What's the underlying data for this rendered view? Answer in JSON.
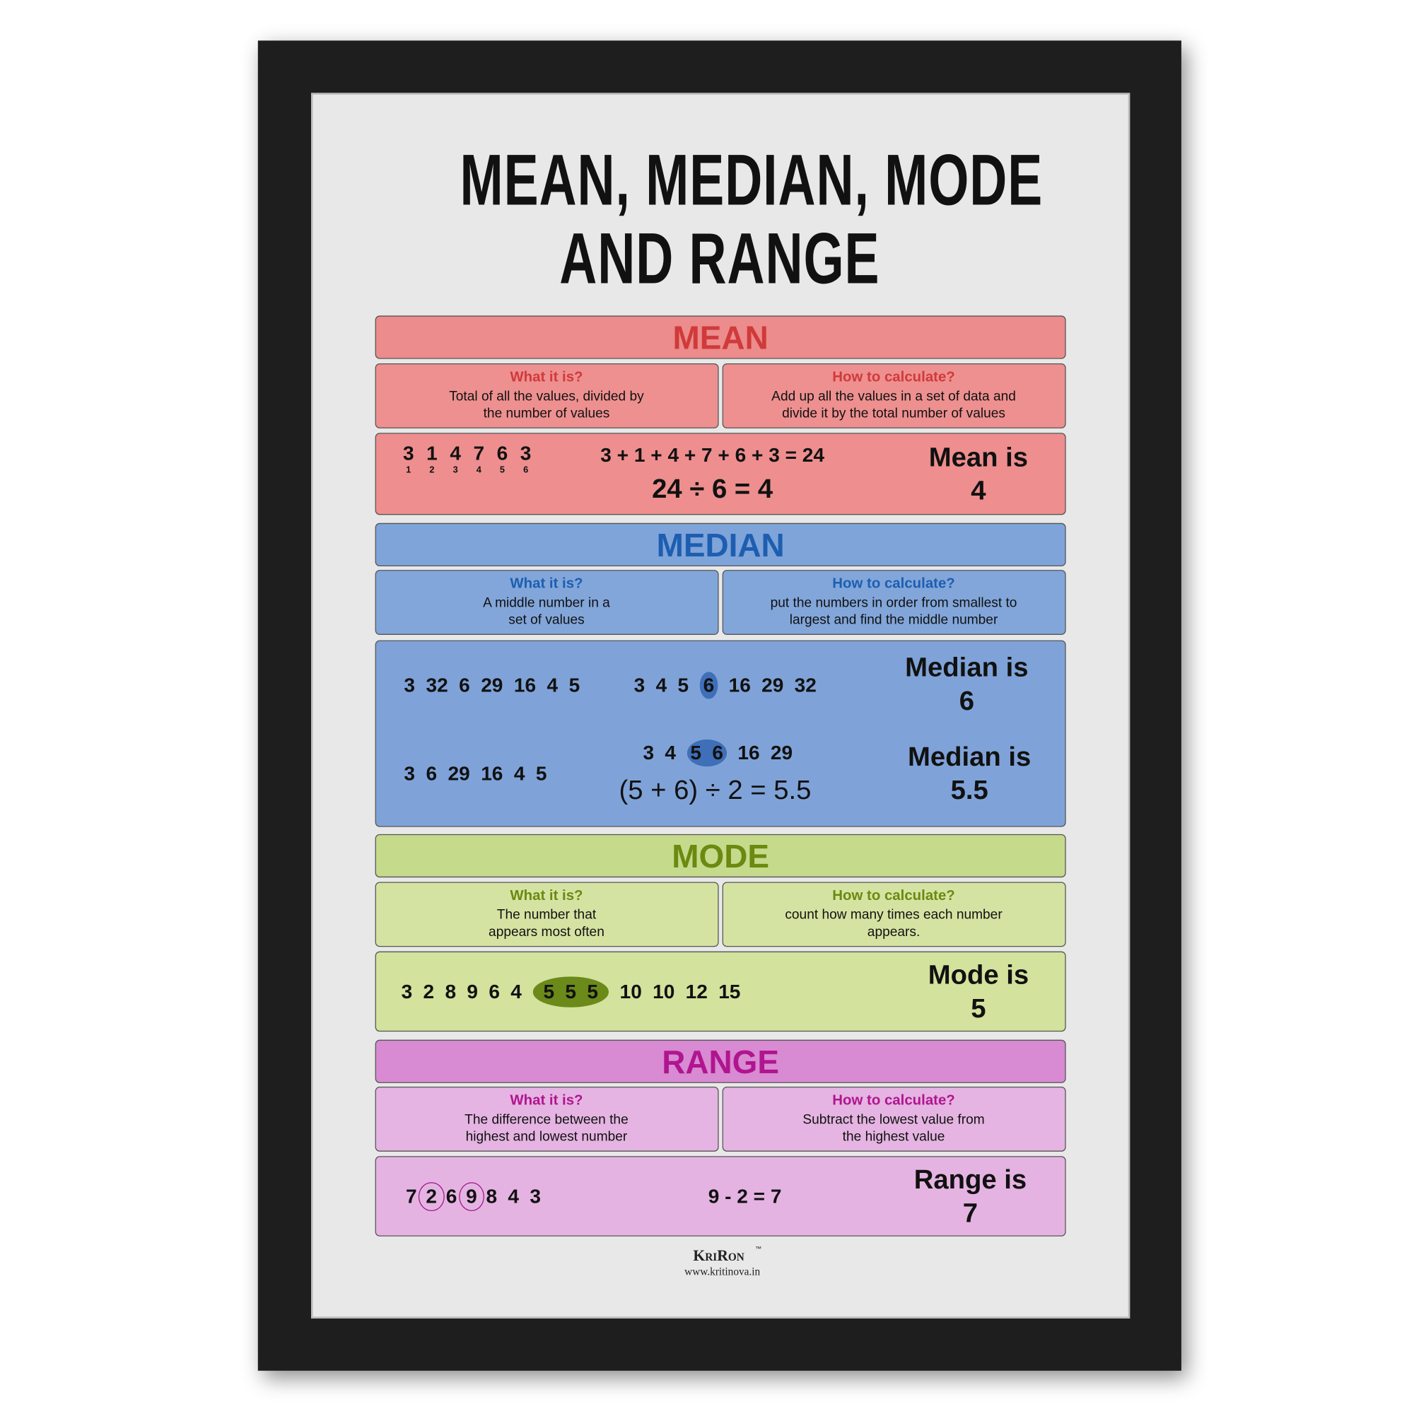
{
  "title": [
    "MEAN, MEDIAN, MODE",
    "AND RANGE"
  ],
  "sections": [
    {
      "heading": "MEAN",
      "what_label": "What it is?",
      "what_text": [
        "Total of all the values, divided by",
        "the number of values"
      ],
      "how_label": "How to calculate?",
      "how_text": [
        "Add up all the values in a set of data and",
        "divide it by the total number of values"
      ],
      "example": {
        "numbers": [
          "3",
          "1",
          "4",
          "7",
          "6",
          "3"
        ],
        "positions": [
          "1",
          "2",
          "3",
          "4",
          "5",
          "6"
        ],
        "sum": "3 + 1 + 4 + 7 + 6 + 3 = 24",
        "division": "24 ÷ 6 = 4",
        "result": [
          "Mean is",
          "4"
        ]
      }
    },
    {
      "heading": "MEDIAN",
      "what_label": "What it is?",
      "what_text": [
        "A middle number in a",
        "set of values"
      ],
      "how_label": "How to calculate?",
      "how_text": [
        "put the numbers in order from smallest to",
        "largest and find the middle number"
      ],
      "example": [
        {
          "data": "3 32 6 29 16 4 5",
          "sorted": [
            [
              "3",
              "4",
              "5"
            ],
            [
              "6"
            ],
            [
              "16",
              "29",
              "32"
            ]
          ],
          "result": [
            "Median is",
            "6"
          ]
        },
        {
          "data": "3 6 29 16 4 5",
          "sorted": [
            [
              "3",
              "4"
            ],
            [
              "5",
              "6"
            ],
            [
              "16",
              "29"
            ]
          ],
          "calc": "(5 + 6) ÷ 2 = 5.5",
          "result": [
            "Median is",
            "5.5"
          ]
        }
      ]
    },
    {
      "heading": "MODE",
      "what_label": "What it is?",
      "what_text": [
        "The number that",
        "appears most often"
      ],
      "how_label": "How to calculate?",
      "how_text": [
        "count how many times each number",
        "appears."
      ],
      "example": {
        "data": [
          [
            "3",
            "2",
            "8",
            "9",
            "6",
            "4"
          ],
          [
            "5",
            "5",
            "5"
          ],
          [
            "10",
            "10",
            "12",
            "15"
          ]
        ],
        "result": [
          "Mode is",
          "5"
        ]
      }
    },
    {
      "heading": "RANGE",
      "what_label": "What it is?",
      "what_text": [
        "The difference between the",
        "highest and lowest number"
      ],
      "how_label": "How to calculate?",
      "how_text": [
        "Subtract the lowest value from",
        "the highest value"
      ],
      "example": {
        "data": [
          [
            "7"
          ],
          [
            "2"
          ],
          [
            "6"
          ],
          [
            "9"
          ],
          [
            "8",
            "4",
            "3"
          ]
        ],
        "calc": "9 - 2 = 7",
        "result": [
          "Range is",
          "7"
        ]
      }
    }
  ],
  "footer": {
    "brand": "KriRon",
    "trademark": "™",
    "url": "www.kritinova.in"
  }
}
